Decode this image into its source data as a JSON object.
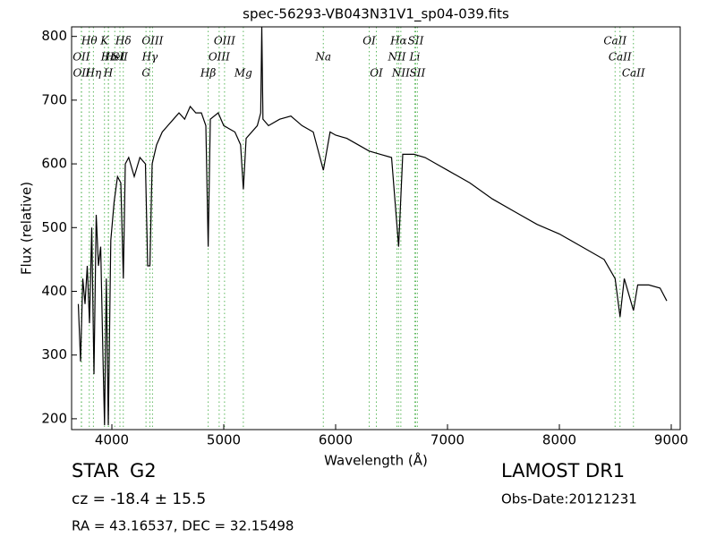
{
  "chart_data": {
    "type": "line",
    "title": "spec-56293-VB043N31V1_sp04-039.fits",
    "x_label": "Wavelength (Å)",
    "y_label": "Flux (relative)",
    "xlim": [
      3640,
      9080
    ],
    "ylim": [
      183,
      815
    ],
    "xticks": [
      4000,
      5000,
      6000,
      7000,
      8000,
      9000
    ],
    "yticks": [
      200,
      300,
      400,
      500,
      600,
      700,
      800
    ],
    "series": [
      {
        "color": "#000000",
        "x": [
          3700,
          3720,
          3740,
          3760,
          3780,
          3800,
          3820,
          3840,
          3860,
          3880,
          3900,
          3920,
          3934,
          3950,
          3968,
          3990,
          4020,
          4050,
          4080,
          4102,
          4120,
          4150,
          4200,
          4250,
          4300,
          4320,
          4340,
          4360,
          4400,
          4450,
          4500,
          4550,
          4600,
          4650,
          4700,
          4750,
          4800,
          4840,
          4861,
          4880,
          4950,
          5000,
          5100,
          5150,
          5175,
          5200,
          5300,
          5330,
          5340,
          5350,
          5400,
          5500,
          5600,
          5700,
          5800,
          5890,
          5950,
          6000,
          6100,
          6200,
          6300,
          6400,
          6500,
          6563,
          6600,
          6700,
          6800,
          6900,
          7000,
          7200,
          7400,
          7600,
          7800,
          8000,
          8200,
          8400,
          8498,
          8542,
          8580,
          8662,
          8700,
          8800,
          8900,
          8960
        ],
        "values": [
          380,
          290,
          420,
          380,
          440,
          350,
          500,
          270,
          520,
          440,
          470,
          300,
          190,
          420,
          190,
          480,
          540,
          580,
          570,
          420,
          600,
          610,
          580,
          610,
          600,
          440,
          440,
          600,
          630,
          650,
          660,
          670,
          680,
          670,
          690,
          680,
          680,
          660,
          470,
          670,
          680,
          660,
          650,
          630,
          560,
          640,
          660,
          680,
          815,
          670,
          660,
          670,
          675,
          660,
          650,
          590,
          650,
          645,
          640,
          630,
          620,
          615,
          610,
          470,
          615,
          615,
          610,
          600,
          590,
          570,
          545,
          525,
          505,
          490,
          470,
          450,
          420,
          360,
          420,
          370,
          410,
          410,
          405,
          385
        ]
      }
    ],
    "annotations": [
      {
        "text": "Hθ",
        "x": 3798,
        "row": 0
      },
      {
        "text": "K",
        "x": 3934,
        "row": 0
      },
      {
        "text": "Hδ",
        "x": 4102,
        "row": 0
      },
      {
        "text": "OIII",
        "x": 4363,
        "row": 0
      },
      {
        "text": "OIII",
        "x": 5007,
        "row": 0
      },
      {
        "text": "OI",
        "x": 6300,
        "row": 0
      },
      {
        "text": "Hα",
        "x": 6563,
        "row": 0
      },
      {
        "text": "SII",
        "x": 6716,
        "row": 0
      },
      {
        "text": "CaII",
        "x": 8498,
        "row": 0
      },
      {
        "text": "OII",
        "x": 3727,
        "row": 1
      },
      {
        "text": "Hε",
        "x": 3970,
        "row": 1
      },
      {
        "text": "HeI",
        "x": 4026,
        "row": 1
      },
      {
        "text": "SII",
        "x": 4072,
        "row": 1
      },
      {
        "text": "Hγ",
        "x": 4340,
        "row": 1
      },
      {
        "text": "OIII",
        "x": 4959,
        "row": 1
      },
      {
        "text": "Na",
        "x": 5890,
        "row": 1
      },
      {
        "text": "NII",
        "x": 6548,
        "row": 1
      },
      {
        "text": "Li",
        "x": 6707,
        "row": 1
      },
      {
        "text": "CaII",
        "x": 8542,
        "row": 1
      },
      {
        "text": "OII",
        "x": 3729,
        "row": 2
      },
      {
        "text": "Hη",
        "x": 3835,
        "row": 2
      },
      {
        "text": "H",
        "x": 3968,
        "row": 2
      },
      {
        "text": "G",
        "x": 4305,
        "row": 2
      },
      {
        "text": "Hβ",
        "x": 4861,
        "row": 2
      },
      {
        "text": "Mg",
        "x": 5175,
        "row": 2
      },
      {
        "text": "OI",
        "x": 6364,
        "row": 2
      },
      {
        "text": "NII",
        "x": 6583,
        "row": 2
      },
      {
        "text": "SII",
        "x": 6731,
        "row": 2
      },
      {
        "text": "CaII",
        "x": 8662,
        "row": 2
      }
    ],
    "info": {
      "class": "STAR",
      "subclass": "G2",
      "cz": "cz = -18.4 ± 15.5",
      "coords": "RA = 43.16537, DEC = 32.15498",
      "survey": "LAMOST DR1",
      "obs_date": "Obs-Date:20121231"
    }
  }
}
